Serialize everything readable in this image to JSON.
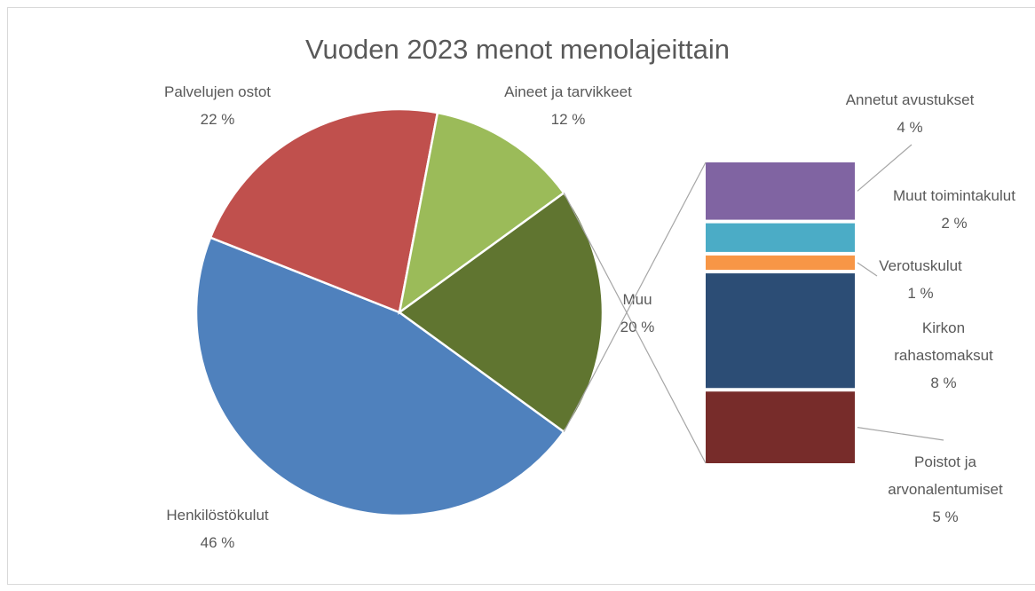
{
  "chart_data": {
    "type": "pie",
    "title": "Vuoden 2023 menot menolajeittain",
    "categories": [
      "Henkilöstökulut",
      "Palvelujen ostot",
      "Aineet ja tarvikkeet",
      "Muu"
    ],
    "values": [
      46,
      22,
      12,
      20
    ],
    "value_labels": [
      "46 %",
      "22 %",
      "12 %",
      "20 %"
    ],
    "colors": [
      "#4f81bd",
      "#c0504d",
      "#9bbb59",
      "#607530"
    ],
    "breakdown": {
      "categories": [
        "Annetut avustukset",
        "Muut toimintakulut",
        "Verotuskulut",
        "Kirkon rahastomaksut",
        "Poistot ja arvonalentumiset"
      ],
      "values": [
        4,
        2,
        1,
        8,
        5
      ],
      "value_labels": [
        "4 %",
        "2 %",
        "1 %",
        "8 %",
        "5 %"
      ],
      "colors": [
        "#8064a2",
        "#4bacc6",
        "#f79646",
        "#2c4d75",
        "#772c2a"
      ]
    }
  }
}
